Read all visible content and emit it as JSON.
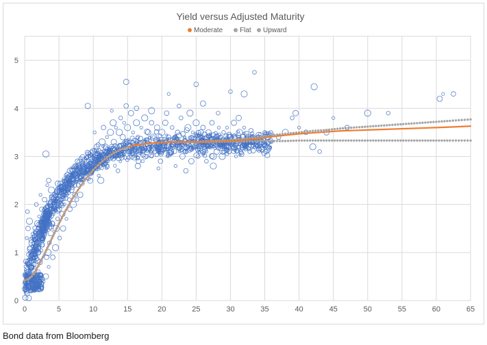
{
  "caption": "Bond data from Bloomberg",
  "chart_data": {
    "type": "scatter",
    "title": "Yield versus Adjusted Maturity",
    "xlabel": "",
    "ylabel": "",
    "xlim": [
      0,
      65
    ],
    "ylim": [
      0,
      5.5
    ],
    "x_ticks": [
      0,
      5,
      10,
      15,
      20,
      25,
      30,
      35,
      40,
      45,
      50,
      55,
      60,
      65
    ],
    "y_ticks": [
      0,
      1,
      2,
      3,
      4,
      5
    ],
    "grid": true,
    "legend_position": "top",
    "colors": {
      "scatter": "#4472c4",
      "moderate": "#ed7d31",
      "flat": "#a5a5a5",
      "upward": "#a5a5a5",
      "grid": "#d9d9d9"
    },
    "scatter_series": {
      "name": "",
      "points": [
        [
          0.3,
          0.35
        ],
        [
          0.5,
          0.3
        ],
        [
          0.7,
          0.4
        ],
        [
          0.9,
          0.45
        ],
        [
          1.1,
          0.5
        ],
        [
          1.3,
          0.4
        ],
        [
          0.4,
          0.6
        ],
        [
          0.6,
          0.8
        ],
        [
          0.8,
          1.0
        ],
        [
          1.0,
          1.2
        ],
        [
          0.3,
          1.3
        ],
        [
          0.5,
          1.5
        ],
        [
          0.7,
          1.65
        ],
        [
          0.4,
          1.85
        ],
        [
          0.6,
          0.05
        ],
        [
          1.2,
          0.7
        ],
        [
          1.5,
          0.9
        ],
        [
          1.8,
          1.1
        ],
        [
          2.0,
          0.6
        ],
        [
          2.2,
          0.8
        ],
        [
          1.4,
          0.3
        ],
        [
          1.7,
          0.35
        ],
        [
          2.4,
          0.45
        ],
        [
          2.6,
          1.3
        ],
        [
          2.8,
          1.5
        ],
        [
          3.0,
          1.7
        ],
        [
          3.2,
          0.9
        ],
        [
          3.4,
          1.0
        ],
        [
          3.6,
          1.2
        ],
        [
          3.8,
          1.4
        ],
        [
          2.1,
          1.75
        ],
        [
          2.5,
          1.9
        ],
        [
          1.9,
          1.6
        ],
        [
          1.6,
          1.4
        ],
        [
          4.0,
          1.6
        ],
        [
          4.2,
          1.8
        ],
        [
          4.4,
          2.0
        ],
        [
          4.6,
          1.5
        ],
        [
          4.8,
          1.7
        ],
        [
          5.0,
          1.9
        ],
        [
          3.3,
          2.4
        ],
        [
          3.5,
          2.5
        ],
        [
          3.9,
          2.3
        ],
        [
          5.3,
          2.1
        ],
        [
          5.5,
          1.8
        ],
        [
          5.8,
          2.0
        ],
        [
          6.0,
          2.2
        ],
        [
          6.3,
          2.4
        ],
        [
          6.5,
          2.1
        ],
        [
          6.8,
          2.3
        ],
        [
          7.0,
          2.5
        ],
        [
          7.3,
          2.2
        ],
        [
          7.5,
          2.6
        ],
        [
          7.8,
          2.4
        ],
        [
          8.0,
          2.7
        ],
        [
          8.3,
          2.5
        ],
        [
          8.5,
          2.8
        ],
        [
          8.8,
          2.6
        ],
        [
          9.0,
          2.9
        ],
        [
          9.3,
          2.7
        ],
        [
          9.5,
          3.0
        ],
        [
          9.8,
          2.8
        ],
        [
          10.0,
          3.1
        ],
        [
          10.3,
          2.9
        ],
        [
          10.5,
          3.2
        ],
        [
          10.8,
          2.6
        ],
        [
          11.0,
          3.0
        ],
        [
          11.3,
          3.3
        ],
        [
          11.5,
          2.9
        ],
        [
          11.8,
          3.2
        ],
        [
          12.0,
          3.4
        ],
        [
          12.3,
          3.1
        ],
        [
          12.5,
          3.5
        ],
        [
          12.8,
          3.0
        ],
        [
          13.0,
          3.3
        ],
        [
          13.3,
          3.6
        ],
        [
          13.5,
          3.2
        ],
        [
          13.8,
          3.5
        ],
        [
          14.0,
          3.8
        ],
        [
          14.3,
          3.4
        ],
        [
          14.5,
          3.7
        ],
        [
          14.8,
          4.05
        ],
        [
          15.0,
          3.6
        ],
        [
          15.3,
          3.3
        ],
        [
          15.5,
          3.9
        ],
        [
          15.8,
          3.5
        ],
        [
          16.0,
          3.2
        ],
        [
          16.3,
          3.7
        ],
        [
          16.5,
          3.4
        ],
        [
          16.8,
          3.1
        ],
        [
          17.0,
          3.6
        ],
        [
          17.3,
          3.3
        ],
        [
          17.5,
          3.8
        ],
        [
          17.8,
          3.0
        ],
        [
          18.0,
          3.5
        ],
        [
          18.3,
          3.2
        ],
        [
          18.5,
          3.7
        ],
        [
          18.8,
          3.4
        ],
        [
          19.0,
          3.1
        ],
        [
          19.3,
          3.6
        ],
        [
          19.5,
          3.3
        ],
        [
          19.8,
          2.9
        ],
        [
          20.0,
          3.5
        ],
        [
          20.3,
          3.2
        ],
        [
          20.5,
          3.7
        ],
        [
          20.8,
          3.0
        ],
        [
          21.0,
          3.4
        ],
        [
          21.3,
          3.1
        ],
        [
          21.5,
          3.6
        ],
        [
          21.8,
          3.3
        ],
        [
          22.0,
          2.8
        ],
        [
          22.3,
          3.5
        ],
        [
          22.5,
          3.2
        ],
        [
          22.8,
          3.8
        ],
        [
          23.0,
          3.0
        ],
        [
          23.3,
          3.4
        ],
        [
          23.5,
          3.1
        ],
        [
          23.8,
          3.6
        ],
        [
          24.0,
          3.3
        ],
        [
          24.3,
          2.9
        ],
        [
          24.5,
          3.5
        ],
        [
          24.8,
          3.2
        ],
        [
          25.0,
          3.7
        ],
        [
          25.3,
          3.0
        ],
        [
          25.5,
          3.4
        ],
        [
          25.8,
          3.1
        ],
        [
          26.0,
          3.6
        ],
        [
          26.3,
          3.3
        ],
        [
          26.5,
          2.9
        ],
        [
          26.8,
          3.5
        ],
        [
          27.0,
          3.2
        ],
        [
          27.3,
          3.7
        ],
        [
          27.5,
          3.0
        ],
        [
          27.8,
          3.4
        ],
        [
          28.0,
          3.1
        ],
        [
          28.3,
          3.6
        ],
        [
          28.5,
          3.3
        ],
        [
          28.8,
          3.0
        ],
        [
          29.0,
          3.5
        ],
        [
          29.3,
          3.2
        ],
        [
          29.5,
          3.6
        ],
        [
          29.8,
          3.1
        ],
        [
          30.0,
          3.4
        ],
        [
          30.3,
          3.2
        ],
        [
          30.5,
          3.7
        ],
        [
          30.8,
          3.0
        ],
        [
          31.0,
          3.3
        ],
        [
          31.3,
          3.5
        ],
        [
          31.5,
          3.1
        ],
        [
          31.8,
          3.4
        ],
        [
          32.0,
          3.6
        ],
        [
          32.3,
          3.2
        ],
        [
          32.5,
          3.4
        ],
        [
          32.8,
          3.1
        ],
        [
          33.0,
          3.3
        ],
        [
          33.5,
          3.2
        ],
        [
          34.0,
          3.4
        ],
        [
          34.5,
          3.3
        ],
        [
          35.0,
          3.5
        ],
        [
          35.5,
          3.4
        ],
        [
          36.0,
          3.3
        ],
        [
          37.0,
          3.4
        ],
        [
          38.0,
          3.5
        ],
        [
          39.0,
          3.8
        ],
        [
          39.5,
          3.9
        ],
        [
          40.0,
          3.6
        ],
        [
          41.0,
          3.5
        ],
        [
          42.0,
          3.2
        ],
        [
          43.0,
          3.1
        ],
        [
          44.0,
          3.5
        ],
        [
          45.0,
          3.8
        ],
        [
          47.0,
          3.6
        ],
        [
          50.0,
          3.9
        ],
        [
          53.0,
          3.9
        ],
        [
          60.5,
          4.2
        ],
        [
          61.0,
          4.3
        ],
        [
          62.5,
          4.3
        ],
        [
          42.2,
          4.45
        ],
        [
          33.5,
          4.75
        ],
        [
          14.8,
          4.55
        ],
        [
          21.0,
          4.3
        ],
        [
          25.0,
          4.5
        ],
        [
          32.0,
          4.3
        ],
        [
          30.0,
          4.35
        ],
        [
          9.2,
          4.05
        ],
        [
          12.7,
          3.95
        ],
        [
          16.3,
          4.0
        ],
        [
          18.5,
          3.95
        ],
        [
          22.5,
          4.05
        ],
        [
          26.0,
          4.1
        ],
        [
          2.3,
          2.2
        ],
        [
          2.9,
          2.1
        ],
        [
          3.1,
          3.05
        ],
        [
          1.7,
          2.0
        ],
        [
          6.6,
          2.7
        ],
        [
          5.6,
          2.5
        ],
        [
          7.7,
          2.9
        ],
        [
          11.1,
          2.5
        ],
        [
          13.6,
          2.7
        ],
        [
          16.5,
          2.8
        ],
        [
          19.5,
          2.75
        ],
        [
          23.5,
          2.7
        ],
        [
          27.5,
          2.8
        ],
        [
          0.8,
          0.2
        ],
        [
          1.1,
          0.25
        ],
        [
          1.4,
          0.2
        ],
        [
          1.9,
          0.3
        ],
        [
          2.3,
          0.25
        ],
        [
          2.7,
          0.4
        ],
        [
          3.1,
          0.5
        ],
        [
          3.5,
          0.7
        ],
        [
          4.1,
          0.9
        ],
        [
          4.5,
          1.1
        ],
        [
          5.1,
          1.3
        ],
        [
          5.6,
          1.5
        ],
        [
          6.1,
          1.7
        ],
        [
          6.6,
          1.9
        ],
        [
          7.1,
          2.0
        ],
        [
          7.6,
          2.1
        ],
        [
          8.1,
          2.2
        ],
        [
          10.2,
          3.5
        ],
        [
          11.5,
          3.6
        ],
        [
          12.9,
          3.7
        ],
        [
          14.1,
          3.1
        ],
        [
          15.6,
          3.0
        ],
        [
          17.2,
          2.9
        ],
        [
          20.7,
          3.9
        ],
        [
          24.1,
          3.9
        ],
        [
          28.2,
          3.9
        ],
        [
          31.2,
          3.8
        ]
      ]
    },
    "moderate_series": {
      "name": "Moderate",
      "x": [
        0,
        0.5,
        1,
        1.5,
        2,
        2.5,
        3,
        3.5,
        4,
        5,
        6,
        7,
        8,
        9,
        10,
        11,
        12,
        13,
        14,
        15,
        16,
        17,
        18,
        19,
        20,
        22,
        24,
        26,
        28,
        30,
        32,
        34,
        36,
        38,
        40,
        42,
        44,
        46,
        48,
        50,
        52,
        54,
        56,
        58,
        60,
        62,
        65
      ],
      "y": [
        0.42,
        0.44,
        0.5,
        0.6,
        0.72,
        0.86,
        1.0,
        1.15,
        1.3,
        1.6,
        1.88,
        2.13,
        2.35,
        2.55,
        2.72,
        2.86,
        2.98,
        3.07,
        3.14,
        3.19,
        3.23,
        3.25,
        3.27,
        3.28,
        3.29,
        3.3,
        3.3,
        3.3,
        3.31,
        3.32,
        3.34,
        3.37,
        3.41,
        3.44,
        3.47,
        3.49,
        3.51,
        3.53,
        3.54,
        3.55,
        3.56,
        3.57,
        3.58,
        3.59,
        3.6,
        3.61,
        3.63
      ]
    },
    "flat_series": {
      "name": "Flat",
      "x": [
        0,
        0.5,
        1,
        1.5,
        2,
        2.5,
        3,
        3.5,
        4,
        5,
        6,
        7,
        8,
        9,
        10,
        11,
        12,
        13,
        14,
        15,
        16,
        17,
        18,
        19,
        20,
        22,
        24,
        26,
        28,
        30,
        32,
        34,
        36,
        38,
        40,
        42,
        44,
        46,
        48,
        50,
        52,
        54,
        56,
        58,
        60,
        62,
        65
      ],
      "y": [
        0.42,
        0.44,
        0.5,
        0.6,
        0.72,
        0.86,
        1.0,
        1.15,
        1.3,
        1.6,
        1.88,
        2.13,
        2.35,
        2.55,
        2.72,
        2.86,
        2.98,
        3.07,
        3.14,
        3.19,
        3.23,
        3.25,
        3.27,
        3.28,
        3.29,
        3.3,
        3.3,
        3.3,
        3.3,
        3.31,
        3.31,
        3.32,
        3.32,
        3.32,
        3.33,
        3.33,
        3.33,
        3.33,
        3.33,
        3.33,
        3.33,
        3.33,
        3.33,
        3.33,
        3.33,
        3.33,
        3.33
      ]
    },
    "upward_series": {
      "name": "Upward",
      "x": [
        0,
        0.5,
        1,
        1.5,
        2,
        2.5,
        3,
        3.5,
        4,
        5,
        6,
        7,
        8,
        9,
        10,
        11,
        12,
        13,
        14,
        15,
        16,
        17,
        18,
        19,
        20,
        22,
        24,
        26,
        28,
        30,
        32,
        34,
        36,
        38,
        40,
        42,
        44,
        46,
        48,
        50,
        52,
        54,
        56,
        58,
        60,
        62,
        65
      ],
      "y": [
        0.42,
        0.44,
        0.5,
        0.6,
        0.72,
        0.86,
        1.0,
        1.15,
        1.3,
        1.6,
        1.88,
        2.13,
        2.35,
        2.55,
        2.72,
        2.86,
        2.98,
        3.07,
        3.14,
        3.19,
        3.23,
        3.25,
        3.27,
        3.28,
        3.29,
        3.3,
        3.3,
        3.31,
        3.32,
        3.34,
        3.37,
        3.4,
        3.44,
        3.47,
        3.5,
        3.53,
        3.55,
        3.58,
        3.6,
        3.62,
        3.64,
        3.66,
        3.68,
        3.7,
        3.72,
        3.74,
        3.77
      ]
    }
  }
}
